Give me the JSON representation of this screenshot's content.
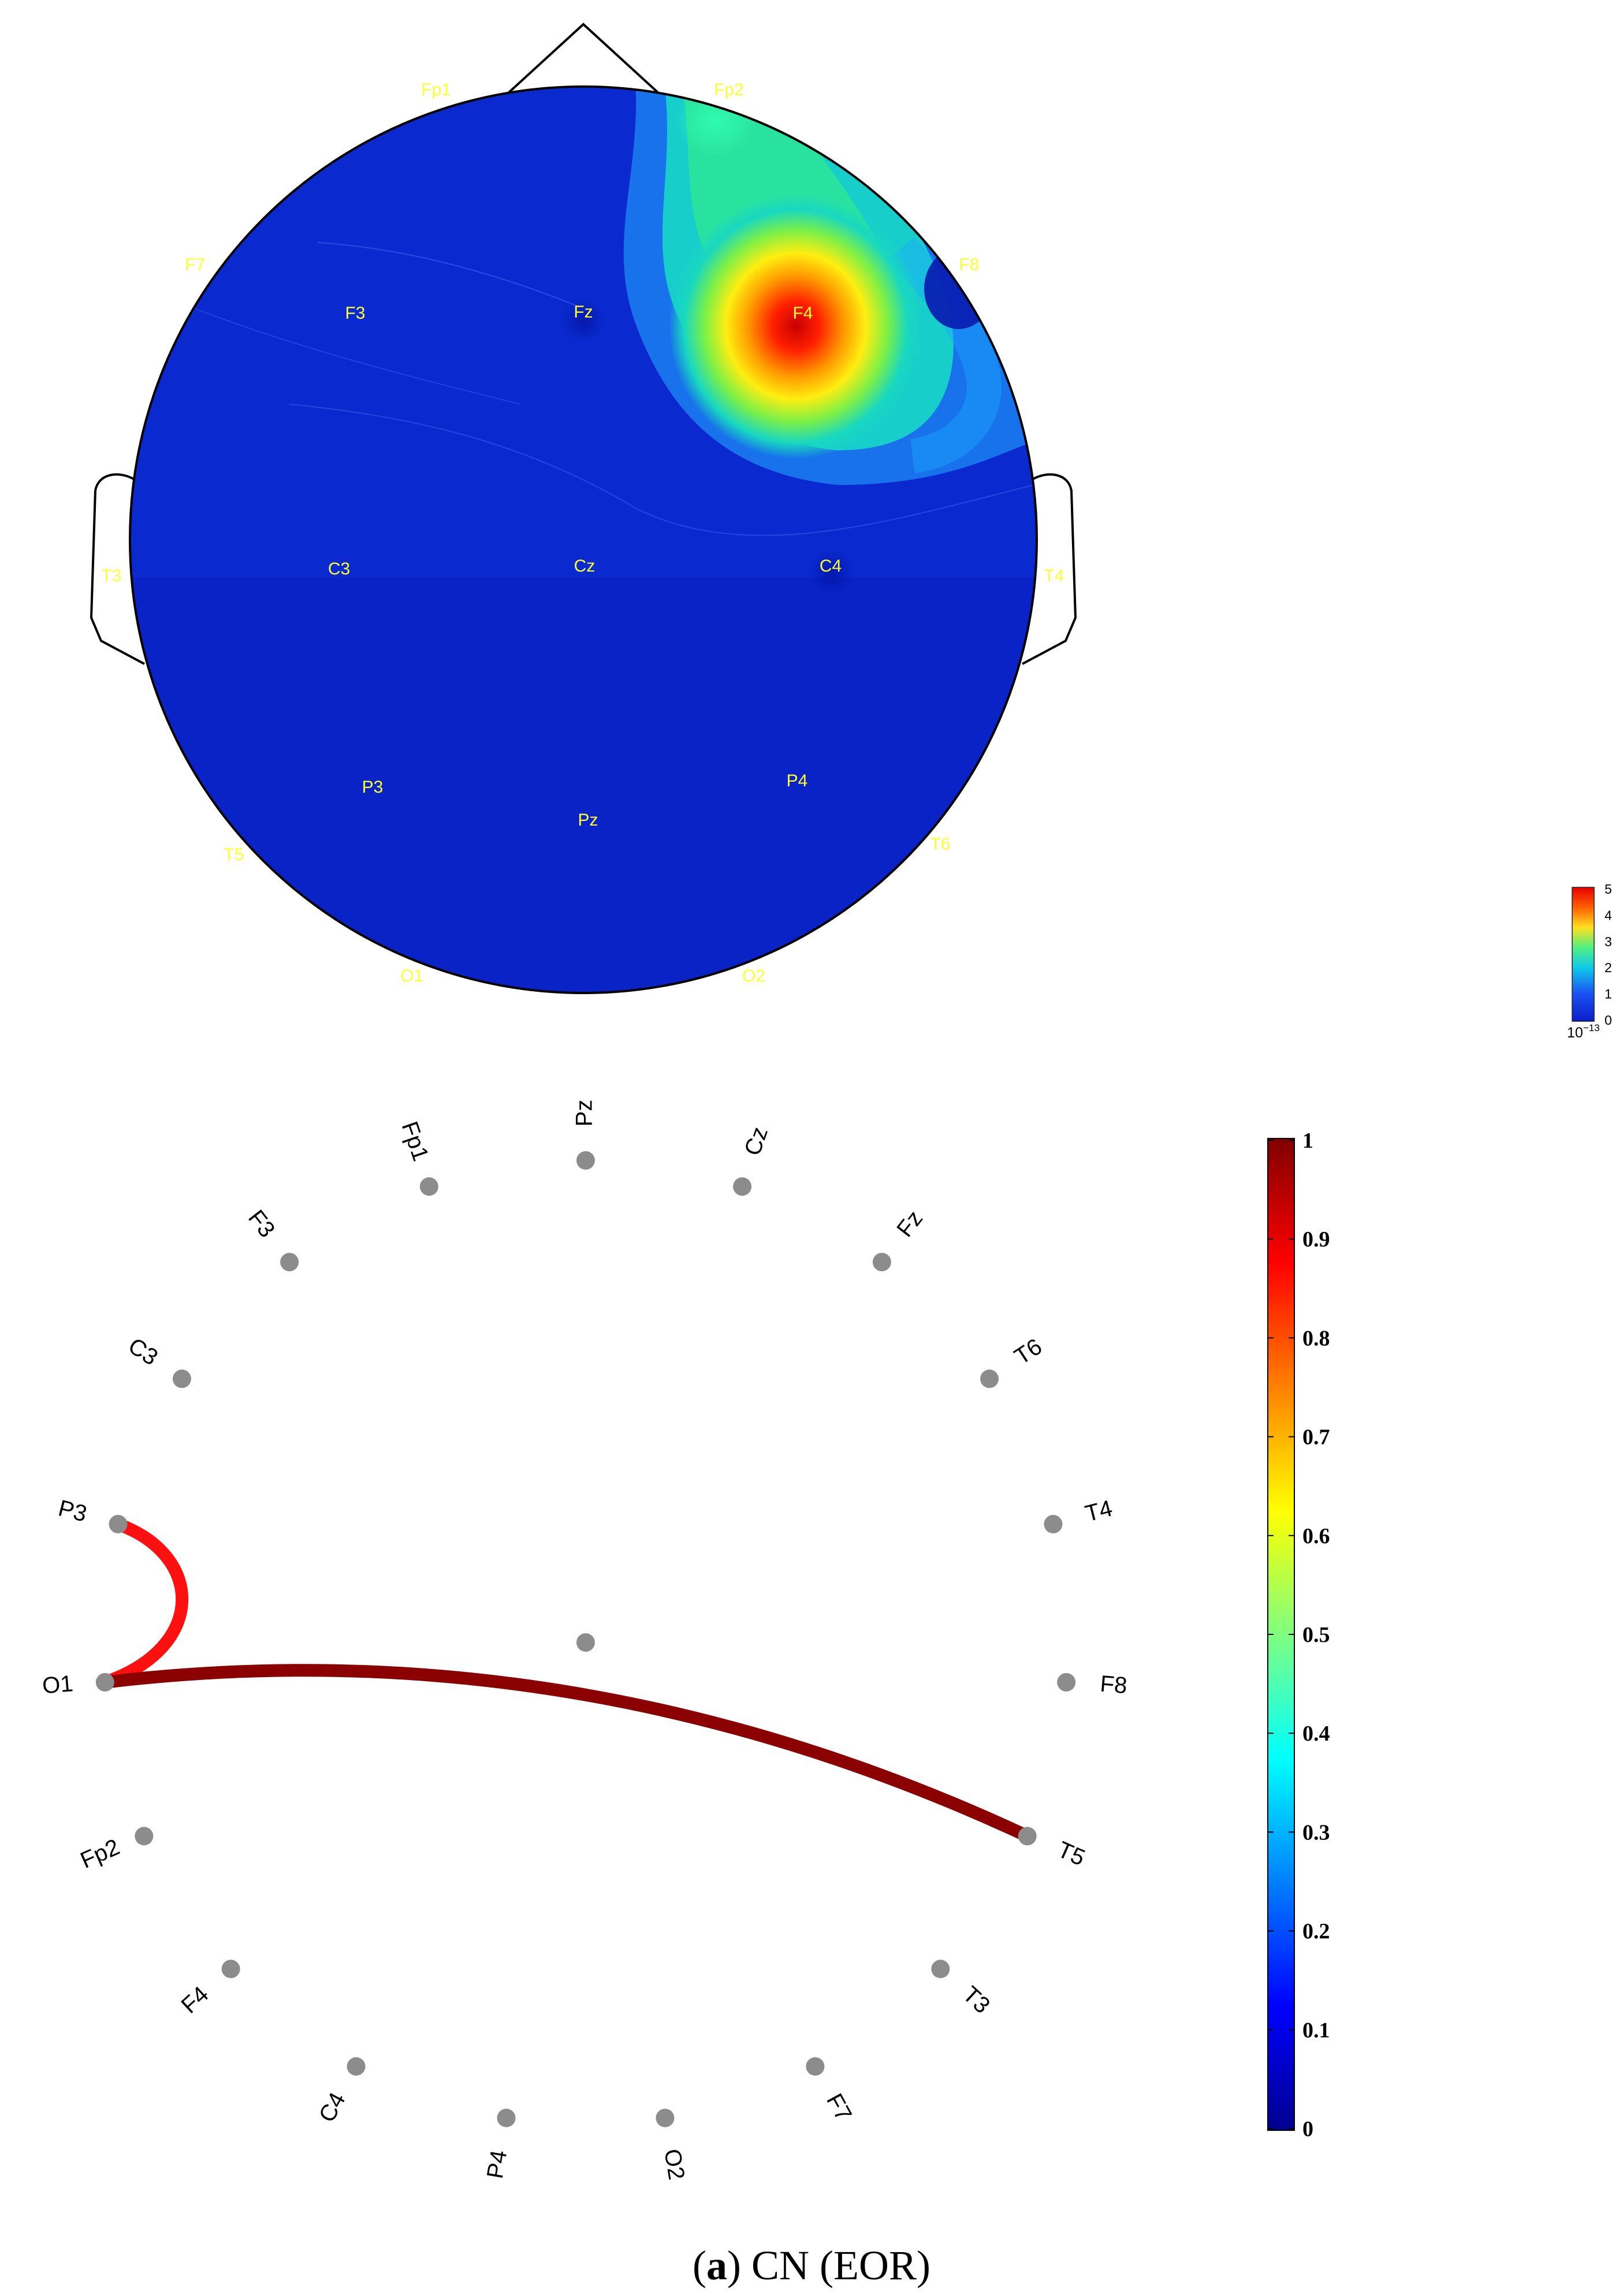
{
  "topomap": {
    "electrodes": [
      {
        "name": "Fp1",
        "pos": "outer"
      },
      {
        "name": "Fp2",
        "pos": "outer"
      },
      {
        "name": "F7",
        "pos": "outer"
      },
      {
        "name": "F8",
        "pos": "outer"
      },
      {
        "name": "F3",
        "pos": "inner"
      },
      {
        "name": "Fz",
        "pos": "inner"
      },
      {
        "name": "F4",
        "pos": "inner"
      },
      {
        "name": "T3",
        "pos": "outer"
      },
      {
        "name": "C3",
        "pos": "inner"
      },
      {
        "name": "Cz",
        "pos": "inner"
      },
      {
        "name": "C4",
        "pos": "inner"
      },
      {
        "name": "T4",
        "pos": "outer"
      },
      {
        "name": "P3",
        "pos": "inner"
      },
      {
        "name": "Pz",
        "pos": "inner"
      },
      {
        "name": "P4",
        "pos": "inner"
      },
      {
        "name": "T5",
        "pos": "outer"
      },
      {
        "name": "T6",
        "pos": "outer"
      },
      {
        "name": "O1",
        "pos": "outer"
      },
      {
        "name": "O2",
        "pos": "outer"
      }
    ],
    "peak_electrode": "F4",
    "colorbar": {
      "ticks": [
        "0",
        "1",
        "2",
        "3",
        "4",
        "5"
      ],
      "exponent_base": "10",
      "exponent_power": "−13"
    },
    "colors": {
      "low": "#0a1ec8",
      "high": "#e80000",
      "label": "#ffff30"
    }
  },
  "connectivity": {
    "nodes": [
      "Pz",
      "Cz",
      "Fz",
      "T6",
      "T4",
      "F8",
      "T5",
      "T3",
      "F7",
      "O2",
      "P4",
      "C4",
      "F4",
      "Fp2",
      "O1",
      "P3",
      "C3",
      "F3",
      "Fp1"
    ],
    "edges": [
      {
        "from": "P3",
        "to": "O1",
        "weight": 0.93,
        "color": "#ff1010"
      },
      {
        "from": "O1",
        "to": "T5",
        "weight": 1.0,
        "color": "#8b0000"
      }
    ],
    "colorbar": {
      "ticks": [
        "0",
        "0.1",
        "0.2",
        "0.3",
        "0.4",
        "0.5",
        "0.6",
        "0.7",
        "0.8",
        "0.9",
        "1"
      ],
      "min": 0,
      "max": 1
    },
    "node_color": "#8c8c8c"
  },
  "caption": {
    "letter": "a",
    "text": " CN (EOR)"
  }
}
